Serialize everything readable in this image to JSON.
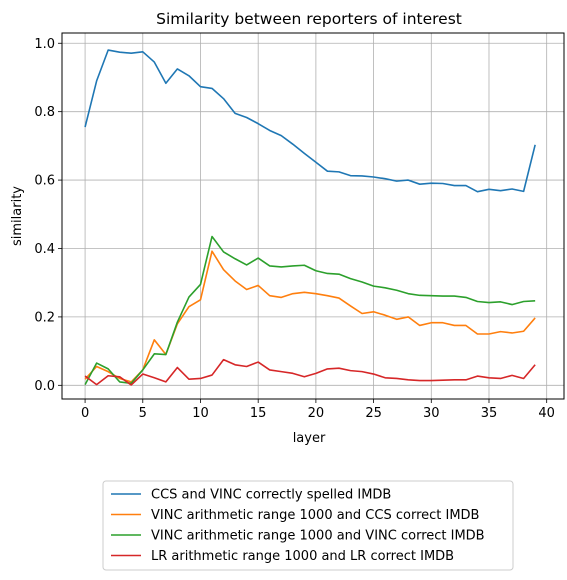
{
  "chart_data": {
    "type": "line",
    "title": "Similarity between reporters of interest",
    "xlabel": "layer",
    "ylabel": "similarity",
    "xlim": [
      -2,
      41.5
    ],
    "ylim": [
      -0.04,
      1.03
    ],
    "xticks": [
      0,
      5,
      10,
      15,
      20,
      25,
      30,
      35,
      40
    ],
    "yticks": [
      0.0,
      0.2,
      0.4,
      0.6,
      0.8,
      1.0
    ],
    "xtick_labels": [
      "0",
      "5",
      "10",
      "15",
      "20",
      "25",
      "30",
      "35",
      "40"
    ],
    "ytick_labels": [
      "0.0",
      "0.2",
      "0.4",
      "0.6",
      "0.8",
      "1.0"
    ],
    "grid": true,
    "legend_position": "below the plot, centered",
    "x": [
      0,
      1,
      2,
      3,
      4,
      5,
      6,
      7,
      8,
      9,
      10,
      11,
      12,
      13,
      14,
      15,
      16,
      17,
      18,
      19,
      20,
      21,
      22,
      23,
      24,
      25,
      26,
      27,
      28,
      29,
      30,
      31,
      32,
      33,
      34,
      35,
      36,
      37,
      38,
      39
    ],
    "series": [
      {
        "name": "CCS and VINC correctly spelled IMDB",
        "color": "#1f77b4",
        "values": [
          0.755,
          0.89,
          0.98,
          0.974,
          0.971,
          0.975,
          0.945,
          0.883,
          0.925,
          0.905,
          0.873,
          0.868,
          0.838,
          0.795,
          0.783,
          0.765,
          0.745,
          0.73,
          0.705,
          0.678,
          0.652,
          0.626,
          0.624,
          0.613,
          0.612,
          0.609,
          0.604,
          0.597,
          0.6,
          0.588,
          0.591,
          0.59,
          0.584,
          0.584,
          0.566,
          0.573,
          0.569,
          0.574,
          0.567,
          0.703
        ]
      },
      {
        "name": "VINC arithmetic range 1000 and CCS correct IMDB",
        "color": "#ff7f0e",
        "values": [
          0.018,
          0.055,
          0.04,
          0.02,
          0.01,
          0.045,
          0.133,
          0.09,
          0.18,
          0.23,
          0.25,
          0.392,
          0.338,
          0.305,
          0.28,
          0.292,
          0.262,
          0.257,
          0.268,
          0.272,
          0.268,
          0.262,
          0.255,
          0.232,
          0.21,
          0.215,
          0.205,
          0.193,
          0.2,
          0.175,
          0.183,
          0.183,
          0.175,
          0.175,
          0.15,
          0.15,
          0.157,
          0.153,
          0.158,
          0.197
        ]
      },
      {
        "name": "VINC arithmetic range 1000 and VINC correct IMDB",
        "color": "#2ca02c",
        "values": [
          0.002,
          0.065,
          0.048,
          0.01,
          0.006,
          0.045,
          0.092,
          0.09,
          0.185,
          0.258,
          0.295,
          0.435,
          0.39,
          0.37,
          0.352,
          0.372,
          0.349,
          0.346,
          0.349,
          0.351,
          0.335,
          0.327,
          0.325,
          0.312,
          0.302,
          0.29,
          0.285,
          0.278,
          0.268,
          0.263,
          0.262,
          0.261,
          0.261,
          0.257,
          0.245,
          0.242,
          0.244,
          0.236,
          0.245,
          0.247
        ]
      },
      {
        "name": "LR arithmetic range 1000 and LR correct IMDB",
        "color": "#d62728",
        "values": [
          0.027,
          0.002,
          0.028,
          0.025,
          0.001,
          0.033,
          0.022,
          0.01,
          0.052,
          0.018,
          0.02,
          0.03,
          0.075,
          0.06,
          0.055,
          0.068,
          0.045,
          0.04,
          0.035,
          0.025,
          0.035,
          0.048,
          0.05,
          0.043,
          0.04,
          0.033,
          0.022,
          0.02,
          0.016,
          0.014,
          0.014,
          0.015,
          0.016,
          0.016,
          0.027,
          0.022,
          0.02,
          0.029,
          0.02,
          0.06
        ]
      }
    ]
  }
}
